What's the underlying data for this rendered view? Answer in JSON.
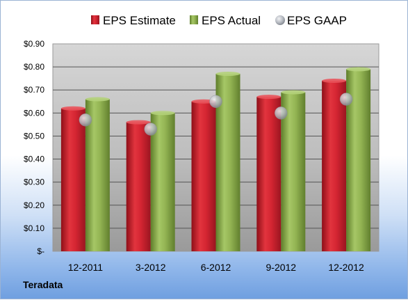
{
  "chart_data": {
    "type": "bar",
    "categories": [
      "12-2011",
      "3-2012",
      "6-2012",
      "9-2012",
      "12-2012"
    ],
    "series": [
      {
        "name": "EPS Estimate",
        "kind": "bar",
        "color": "#cc1f2b",
        "values": [
          0.62,
          0.56,
          0.65,
          0.67,
          0.74
        ]
      },
      {
        "name": "EPS Actual",
        "kind": "bar",
        "color": "#8db04a",
        "values": [
          0.66,
          0.6,
          0.77,
          0.69,
          0.79
        ]
      },
      {
        "name": "EPS GAAP",
        "kind": "marker",
        "color": "#b8bcc4",
        "values": [
          0.57,
          0.53,
          0.65,
          0.6,
          0.66
        ]
      }
    ],
    "ylim": [
      0,
      0.9
    ],
    "yticks": [
      0,
      0.1,
      0.2,
      0.3,
      0.4,
      0.5,
      0.6,
      0.7,
      0.8,
      0.9
    ],
    "ytick_labels": [
      "$-",
      "$0.10",
      "$0.20",
      "$0.30",
      "$0.40",
      "$0.50",
      "$0.60",
      "$0.70",
      "$0.80",
      "$0.90"
    ],
    "grid": true,
    "legend_position": "top"
  },
  "source_label": "Teradata"
}
